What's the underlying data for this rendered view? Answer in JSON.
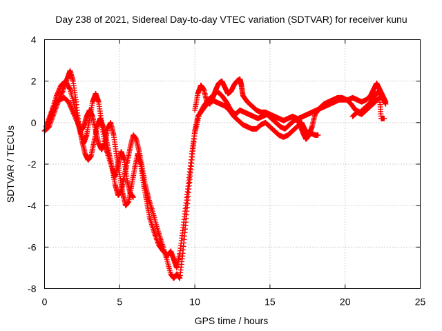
{
  "chart_data": {
    "type": "scatter",
    "title": "Day 238 of 2021, Sidereal Day-to-day VTEC variation (SDTVAR) for receiver kunu",
    "xlabel": "GPS time / hours",
    "ylabel": "SDTVAR / TECUs",
    "xlim": [
      0,
      25
    ],
    "ylim": [
      -8,
      4
    ],
    "xticks": [
      "0",
      "5",
      "10",
      "15",
      "20",
      "25"
    ],
    "yticks": [
      "-8",
      "-6",
      "-4",
      "-2",
      "0",
      "2",
      "4"
    ],
    "grid": true,
    "marker": "plus",
    "color": "#ff0000",
    "series": [
      {
        "points": [
          [
            0.0,
            -0.4
          ],
          [
            0.3,
            -0.2
          ],
          [
            0.6,
            0.4
          ],
          [
            0.9,
            1.0
          ],
          [
            1.2,
            1.5
          ],
          [
            1.5,
            2.1
          ],
          [
            1.7,
            2.5
          ],
          [
            1.9,
            2.0
          ],
          [
            2.1,
            1.0
          ],
          [
            2.3,
            -0.2
          ],
          [
            2.6,
            -1.0
          ],
          [
            2.8,
            -0.6
          ],
          [
            3.0,
            0.2
          ],
          [
            3.2,
            1.0
          ],
          [
            3.4,
            1.4
          ],
          [
            3.6,
            1.0
          ],
          [
            3.8,
            0.0
          ],
          [
            4.0,
            -1.0
          ],
          [
            4.2,
            -1.5
          ],
          [
            4.5,
            -2.2
          ],
          [
            4.7,
            -2.6
          ],
          [
            4.9,
            -2.0
          ],
          [
            5.1,
            -1.4
          ],
          [
            5.3,
            -1.8
          ],
          [
            5.5,
            -2.8
          ],
          [
            5.7,
            -3.4
          ],
          [
            5.9,
            -3.6
          ]
        ]
      },
      {
        "points": [
          [
            0.1,
            -0.2
          ],
          [
            0.4,
            0.3
          ],
          [
            0.7,
            0.9
          ],
          [
            1.0,
            1.1
          ],
          [
            1.3,
            1.2
          ],
          [
            1.6,
            1.0
          ],
          [
            1.9,
            0.5
          ],
          [
            2.2,
            0.0
          ],
          [
            2.4,
            -0.4
          ],
          [
            2.6,
            -0.2
          ],
          [
            2.8,
            0.3
          ],
          [
            3.0,
            0.6
          ],
          [
            3.2,
            0.3
          ],
          [
            3.4,
            -0.4
          ],
          [
            3.6,
            -1.0
          ],
          [
            3.8,
            -1.3
          ],
          [
            4.0,
            -1.0
          ],
          [
            4.2,
            -0.3
          ],
          [
            4.4,
            0.0
          ],
          [
            4.6,
            -0.6
          ],
          [
            4.8,
            -1.6
          ],
          [
            5.0,
            -2.5
          ],
          [
            5.2,
            -3.4
          ],
          [
            5.4,
            -4.0
          ],
          [
            5.6,
            -3.8
          ],
          [
            5.8,
            -3.0
          ],
          [
            6.0,
            -2.2
          ],
          [
            6.2,
            -1.5
          ],
          [
            6.4,
            -2.0
          ],
          [
            6.6,
            -3.0
          ],
          [
            6.8,
            -3.8
          ],
          [
            7.0,
            -4.6
          ],
          [
            7.3,
            -5.3
          ],
          [
            7.6,
            -5.9
          ],
          [
            7.9,
            -6.2
          ],
          [
            8.2,
            -6.4
          ],
          [
            8.4,
            -6.2
          ],
          [
            8.6,
            -6.6
          ],
          [
            8.8,
            -7.0
          ],
          [
            9.0,
            -6.3
          ],
          [
            9.2,
            -5.2
          ],
          [
            9.4,
            -4.0
          ],
          [
            9.6,
            -2.8
          ],
          [
            9.8,
            -1.5
          ],
          [
            10.0,
            -0.4
          ],
          [
            10.2,
            0.3
          ],
          [
            10.5,
            0.6
          ],
          [
            10.8,
            0.9
          ],
          [
            11.1,
            1.1
          ],
          [
            11.4,
            1.0
          ],
          [
            11.7,
            0.9
          ],
          [
            12.0,
            0.8
          ],
          [
            12.3,
            0.6
          ],
          [
            12.6,
            0.3
          ],
          [
            12.9,
            0.1
          ],
          [
            13.2,
            -0.1
          ],
          [
            13.5,
            -0.2
          ],
          [
            13.8,
            -0.3
          ],
          [
            14.1,
            -0.3
          ],
          [
            14.4,
            -0.1
          ],
          [
            14.7,
            0.0
          ],
          [
            15.0,
            -0.2
          ],
          [
            15.3,
            -0.4
          ],
          [
            15.6,
            -0.6
          ],
          [
            15.9,
            -0.7
          ],
          [
            16.2,
            -0.6
          ],
          [
            16.5,
            -0.4
          ],
          [
            16.8,
            -0.2
          ],
          [
            17.1,
            0.0
          ],
          [
            17.3,
            -0.3
          ],
          [
            17.5,
            -0.5
          ],
          [
            17.7,
            -0.5
          ],
          [
            18.0,
            -0.6
          ],
          [
            18.2,
            -0.6
          ]
        ]
      },
      {
        "points": [
          [
            0.2,
            0.0
          ],
          [
            0.5,
            0.6
          ],
          [
            0.8,
            1.3
          ],
          [
            1.1,
            1.8
          ],
          [
            1.4,
            2.0
          ],
          [
            1.7,
            1.6
          ],
          [
            2.0,
            0.8
          ],
          [
            2.3,
            -0.2
          ],
          [
            2.5,
            -0.9
          ],
          [
            2.7,
            -1.5
          ],
          [
            2.9,
            -1.8
          ],
          [
            3.1,
            -1.6
          ],
          [
            3.3,
            -0.9
          ],
          [
            3.5,
            -0.2
          ],
          [
            3.7,
            0.2
          ],
          [
            3.9,
            -0.2
          ],
          [
            4.1,
            -0.8
          ],
          [
            4.3,
            -1.5
          ],
          [
            4.5,
            -2.2
          ],
          [
            4.7,
            -3.0
          ],
          [
            4.9,
            -3.5
          ],
          [
            5.1,
            -3.3
          ],
          [
            5.3,
            -2.6
          ],
          [
            5.5,
            -1.9
          ],
          [
            5.7,
            -1.2
          ],
          [
            5.9,
            -0.6
          ],
          [
            6.1,
            -0.8
          ],
          [
            6.3,
            -1.4
          ],
          [
            6.5,
            -2.2
          ],
          [
            6.7,
            -3.0
          ],
          [
            6.9,
            -3.6
          ],
          [
            7.2,
            -4.3
          ],
          [
            7.5,
            -5.1
          ],
          [
            7.8,
            -5.8
          ],
          [
            8.1,
            -6.5
          ],
          [
            8.4,
            -7.3
          ],
          [
            8.6,
            -7.5
          ],
          [
            8.8,
            -7.3
          ],
          [
            9.0,
            -7.5
          ],
          [
            9.2,
            -6.3
          ],
          [
            9.4,
            -4.8
          ],
          [
            9.6,
            -3.2
          ],
          [
            9.8,
            -1.8
          ],
          [
            10.0,
            -0.5
          ],
          [
            10.3,
            0.4
          ],
          [
            10.6,
            0.8
          ],
          [
            10.9,
            1.1
          ],
          [
            11.2,
            1.3
          ],
          [
            11.5,
            1.5
          ],
          [
            11.8,
            1.3
          ],
          [
            12.1,
            1.0
          ],
          [
            12.4,
            0.6
          ],
          [
            12.7,
            0.4
          ],
          [
            13.0,
            0.6
          ],
          [
            13.3,
            0.5
          ],
          [
            13.6,
            0.4
          ],
          [
            13.9,
            0.3
          ],
          [
            14.2,
            0.2
          ],
          [
            14.5,
            0.3
          ],
          [
            14.8,
            0.4
          ],
          [
            15.1,
            0.2
          ],
          [
            15.4,
            0.0
          ],
          [
            15.7,
            -0.2
          ],
          [
            16.0,
            -0.3
          ],
          [
            16.3,
            -0.1
          ],
          [
            16.6,
            0.1
          ],
          [
            16.9,
            0.2
          ],
          [
            17.2,
            0.3
          ],
          [
            17.5,
            0.4
          ],
          [
            17.8,
            0.5
          ],
          [
            18.1,
            0.6
          ],
          [
            18.4,
            0.7
          ],
          [
            18.7,
            0.8
          ],
          [
            19.0,
            0.9
          ],
          [
            19.3,
            1.0
          ],
          [
            19.6,
            1.1
          ],
          [
            19.9,
            1.1
          ],
          [
            20.2,
            1.1
          ],
          [
            20.5,
            1.2
          ],
          [
            20.8,
            1.1
          ],
          [
            21.1,
            1.0
          ],
          [
            21.4,
            1.1
          ],
          [
            21.7,
            1.3
          ],
          [
            21.9,
            1.6
          ],
          [
            22.1,
            1.9
          ],
          [
            22.3,
            1.6
          ],
          [
            22.5,
            1.3
          ],
          [
            22.7,
            1.0
          ]
        ]
      },
      {
        "points": [
          [
            10.0,
            0.6
          ],
          [
            10.2,
            1.4
          ],
          [
            10.4,
            1.8
          ],
          [
            10.6,
            1.6
          ],
          [
            10.8,
            1.0
          ],
          [
            11.0,
            0.9
          ],
          [
            11.2,
            1.2
          ],
          [
            11.4,
            1.6
          ],
          [
            11.6,
            1.9
          ],
          [
            11.8,
            2.0
          ],
          [
            12.0,
            1.7
          ],
          [
            12.2,
            1.4
          ],
          [
            12.4,
            1.5
          ],
          [
            12.6,
            1.8
          ],
          [
            12.8,
            2.0
          ],
          [
            13.0,
            2.1
          ],
          [
            13.1,
            1.8
          ],
          [
            13.2,
            1.3
          ],
          [
            13.5,
            1.0
          ],
          [
            13.8,
            0.8
          ],
          [
            14.1,
            0.6
          ],
          [
            14.4,
            0.5
          ],
          [
            14.7,
            0.5
          ],
          [
            15.0,
            0.4
          ],
          [
            15.3,
            0.3
          ],
          [
            15.6,
            0.2
          ],
          [
            15.9,
            0.1
          ],
          [
            16.2,
            0.2
          ],
          [
            16.5,
            0.3
          ],
          [
            16.8,
            0.2
          ],
          [
            17.0,
            -0.1
          ],
          [
            17.2,
            -0.5
          ],
          [
            17.4,
            -0.8
          ],
          [
            17.6,
            -0.6
          ],
          [
            17.8,
            -0.2
          ],
          [
            18.0,
            0.4
          ],
          [
            18.3,
            0.7
          ],
          [
            18.6,
            0.9
          ],
          [
            18.9,
            1.0
          ],
          [
            19.2,
            1.1
          ],
          [
            19.5,
            1.2
          ],
          [
            19.8,
            1.2
          ],
          [
            20.1,
            1.1
          ],
          [
            20.4,
            0.9
          ],
          [
            20.7,
            0.6
          ],
          [
            21.0,
            0.5
          ],
          [
            21.3,
            0.7
          ],
          [
            21.6,
            0.9
          ],
          [
            21.9,
            1.2
          ],
          [
            22.2,
            1.5
          ],
          [
            22.5,
            1.2
          ],
          [
            22.7,
            0.9
          ]
        ]
      },
      {
        "points": [
          [
            20.5,
            0.3
          ],
          [
            20.8,
            0.5
          ],
          [
            21.1,
            0.4
          ],
          [
            21.4,
            0.6
          ],
          [
            21.7,
            0.8
          ],
          [
            22.0,
            1.0
          ],
          [
            22.3,
            1.2
          ],
          [
            22.4,
            0.2
          ],
          [
            22.6,
            0.2
          ]
        ]
      }
    ]
  }
}
